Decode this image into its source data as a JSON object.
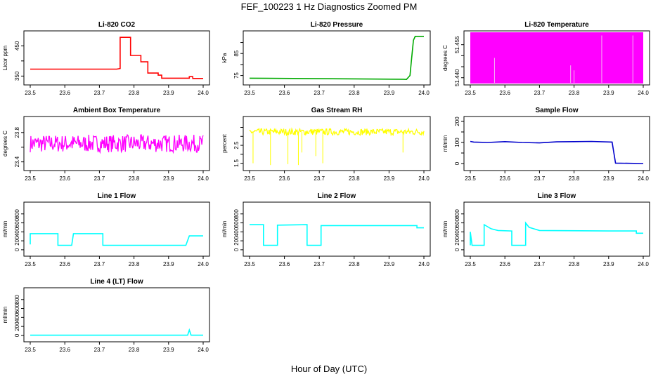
{
  "title": "FEF_100223  1 Hz Diagnostics Zoomed PM",
  "xlabel": "Hour of Day (UTC)",
  "chart_data": [
    {
      "type": "line",
      "title": "Li-820 CO2",
      "ylabel": "Licor ppm",
      "color": "#ff0000",
      "xlim": [
        23.5,
        24.0
      ],
      "ylim": [
        330,
        490
      ],
      "xticks": [
        "23.5",
        "23.6",
        "23.7",
        "23.8",
        "23.9",
        "24.0"
      ],
      "yticks": [
        350,
        400,
        450
      ],
      "ytick_labels": [
        "350",
        "",
        "450"
      ],
      "series": [
        {
          "x": [
            23.5,
            23.75,
            23.76,
            23.76,
            23.79,
            23.79,
            23.82,
            23.82,
            23.84,
            23.84,
            23.87,
            23.87,
            23.88,
            23.88,
            23.95,
            23.96,
            23.96,
            23.97,
            23.97,
            24.0
          ],
          "y": [
            373,
            373,
            375,
            478,
            478,
            418,
            418,
            397,
            397,
            360,
            360,
            353,
            353,
            343,
            343,
            343,
            348,
            348,
            342,
            342
          ]
        }
      ]
    },
    {
      "type": "line",
      "title": "Li-820 Pressure",
      "ylabel": "kPa",
      "color": "#00aa00",
      "xlim": [
        23.5,
        24.0
      ],
      "ylim": [
        72,
        94
      ],
      "xticks": [
        "23.5",
        "23.6",
        "23.7",
        "23.8",
        "23.9",
        "24.0"
      ],
      "yticks": [
        75,
        80,
        85,
        90
      ],
      "ytick_labels": [
        "75",
        "",
        "85",
        ""
      ],
      "series": [
        {
          "x": [
            23.5,
            23.94,
            23.95,
            23.96,
            23.965,
            23.97,
            23.975,
            24.0
          ],
          "y": [
            73.8,
            73.3,
            73.2,
            75,
            83,
            91,
            92.8,
            92.8
          ]
        }
      ]
    },
    {
      "type": "area",
      "title": "Li-820 Temperature",
      "ylabel": "degrees C",
      "color": "#ff00ff",
      "xlim": [
        23.5,
        24.0
      ],
      "ylim": [
        51.438,
        51.46
      ],
      "xticks": [
        "23.5",
        "23.6",
        "23.7",
        "23.8",
        "23.9",
        "24.0"
      ],
      "yticks": [
        51.44,
        51.445,
        51.45,
        51.455
      ],
      "ytick_labels": [
        "51.440",
        "",
        "",
        "51.455"
      ],
      "series": [
        {
          "x": [
            23.5,
            24.0
          ],
          "y": [
            51.44,
            51.46
          ],
          "gaps_x": [
            23.57,
            23.79,
            23.8,
            23.88,
            23.97
          ]
        }
      ]
    },
    {
      "type": "line",
      "title": "Ambient Box Temperature",
      "ylabel": "degrees C",
      "color": "#ff00ff",
      "xlim": [
        23.5,
        24.0
      ],
      "ylim": [
        23.32,
        23.98
      ],
      "xticks": [
        "23.5",
        "23.6",
        "23.7",
        "23.8",
        "23.9",
        "24.0"
      ],
      "yticks": [
        23.4,
        23.6,
        23.8
      ],
      "ytick_labels": [
        "23.4",
        "",
        "23.8"
      ],
      "series": [
        {
          "x": [
            23.5,
            24.0
          ],
          "y": [
            23.65,
            23.65
          ],
          "noise": 0.12
        }
      ]
    },
    {
      "type": "line",
      "title": "Gas Stream RH",
      "ylabel": "percent",
      "color": "#ffff00",
      "xlim": [
        23.5,
        24.0
      ],
      "ylim": [
        1.25,
        3.95
      ],
      "xticks": [
        "23.5",
        "23.6",
        "23.7",
        "23.8",
        "23.9",
        "24.0"
      ],
      "yticks": [
        1.5,
        2.0,
        2.5,
        3.0,
        3.5
      ],
      "ytick_labels": [
        "1.5",
        "",
        "2.5",
        "",
        ""
      ],
      "series": [
        {
          "x": [
            23.5,
            24.0
          ],
          "y": [
            3.25,
            3.25
          ],
          "noise": 0.18,
          "dips_x": [
            23.51,
            23.56,
            23.61,
            23.64,
            23.65,
            23.69,
            23.71,
            23.94
          ],
          "dips_y": [
            1.5,
            1.4,
            1.45,
            1.4,
            2.1,
            1.9,
            1.5,
            2.1
          ]
        }
      ]
    },
    {
      "type": "line",
      "title": "Sample Flow",
      "ylabel": "ml/min",
      "color": "#0000cc",
      "xlim": [
        23.5,
        24.0
      ],
      "ylim": [
        -20,
        210
      ],
      "xticks": [
        "23.5",
        "23.6",
        "23.7",
        "23.8",
        "23.9",
        "24.0"
      ],
      "yticks": [
        0,
        50,
        100,
        150,
        200
      ],
      "ytick_labels": [
        "0",
        "",
        "100",
        "",
        "200"
      ],
      "series": [
        {
          "x": [
            23.5,
            23.51,
            23.55,
            23.6,
            23.65,
            23.7,
            23.75,
            23.8,
            23.85,
            23.91,
            23.92,
            24.0
          ],
          "y": [
            105,
            102,
            100,
            104,
            100,
            98,
            103,
            104,
            105,
            102,
            2,
            0
          ]
        }
      ]
    },
    {
      "type": "line",
      "title": "Line 1 Flow",
      "ylabel": "ml/min",
      "color": "#00ffff",
      "xlim": [
        23.5,
        24.0
      ],
      "ylim": [
        -80,
        1000
      ],
      "xticks": [
        "23.5",
        "23.6",
        "23.7",
        "23.8",
        "23.9",
        "24.0"
      ],
      "yticks": [
        0,
        200,
        400,
        600,
        800
      ],
      "ytick_labels": [
        "0",
        "200",
        "400",
        "600",
        "800"
      ],
      "series": [
        {
          "x": [
            23.5,
            23.5,
            23.58,
            23.58,
            23.62,
            23.625,
            23.71,
            23.71,
            23.95,
            23.96,
            24.0
          ],
          "y": [
            120,
            360,
            360,
            100,
            100,
            360,
            360,
            100,
            100,
            310,
            310
          ]
        }
      ]
    },
    {
      "type": "line",
      "title": "Line 2 Flow",
      "ylabel": "ml/min",
      "color": "#00ffff",
      "xlim": [
        23.5,
        24.0
      ],
      "ylim": [
        -80,
        1000
      ],
      "xticks": [
        "23.5",
        "23.6",
        "23.7",
        "23.8",
        "23.9",
        "24.0"
      ],
      "yticks": [
        0,
        200,
        400,
        600,
        800
      ],
      "ytick_labels": [
        "0",
        "200",
        "400",
        "600",
        "800"
      ],
      "series": [
        {
          "x": [
            23.5,
            23.54,
            23.54,
            23.58,
            23.58,
            23.665,
            23.665,
            23.705,
            23.705,
            23.98,
            23.98,
            24.0
          ],
          "y": [
            560,
            560,
            100,
            100,
            550,
            560,
            100,
            100,
            540,
            540,
            490,
            490
          ]
        }
      ]
    },
    {
      "type": "line",
      "title": "Line 3 Flow",
      "ylabel": "ml/min",
      "color": "#00ffff",
      "xlim": [
        23.5,
        24.0
      ],
      "ylim": [
        -80,
        1000
      ],
      "xticks": [
        "23.5",
        "23.6",
        "23.7",
        "23.8",
        "23.9",
        "24.0"
      ],
      "yticks": [
        0,
        200,
        400,
        600,
        800
      ],
      "ytick_labels": [
        "0",
        "200",
        "400",
        "600",
        "800"
      ],
      "series": [
        {
          "x": [
            23.5,
            23.5,
            23.505,
            23.54,
            23.54,
            23.56,
            23.58,
            23.62,
            23.62,
            23.66,
            23.66,
            23.67,
            23.7,
            23.9,
            23.95,
            23.98,
            23.98,
            24.0
          ],
          "y": [
            100,
            400,
            100,
            100,
            560,
            470,
            430,
            420,
            100,
            100,
            600,
            500,
            430,
            420,
            420,
            420,
            370,
            370
          ]
        }
      ]
    },
    {
      "type": "line",
      "title": "Line 4 (LT) Flow",
      "ylabel": "ml/min",
      "color": "#00ffff",
      "xlim": [
        23.5,
        24.0
      ],
      "ylim": [
        -80,
        1000
      ],
      "xticks": [
        "23.5",
        "23.6",
        "23.7",
        "23.8",
        "23.9",
        "24.0"
      ],
      "yticks": [
        0,
        200,
        400,
        600,
        800
      ],
      "ytick_labels": [
        "0",
        "200",
        "400",
        "600",
        "800"
      ],
      "series": [
        {
          "x": [
            23.5,
            23.955,
            23.96,
            23.965,
            24.0
          ],
          "y": [
            5,
            5,
            120,
            5,
            5
          ]
        }
      ]
    }
  ]
}
